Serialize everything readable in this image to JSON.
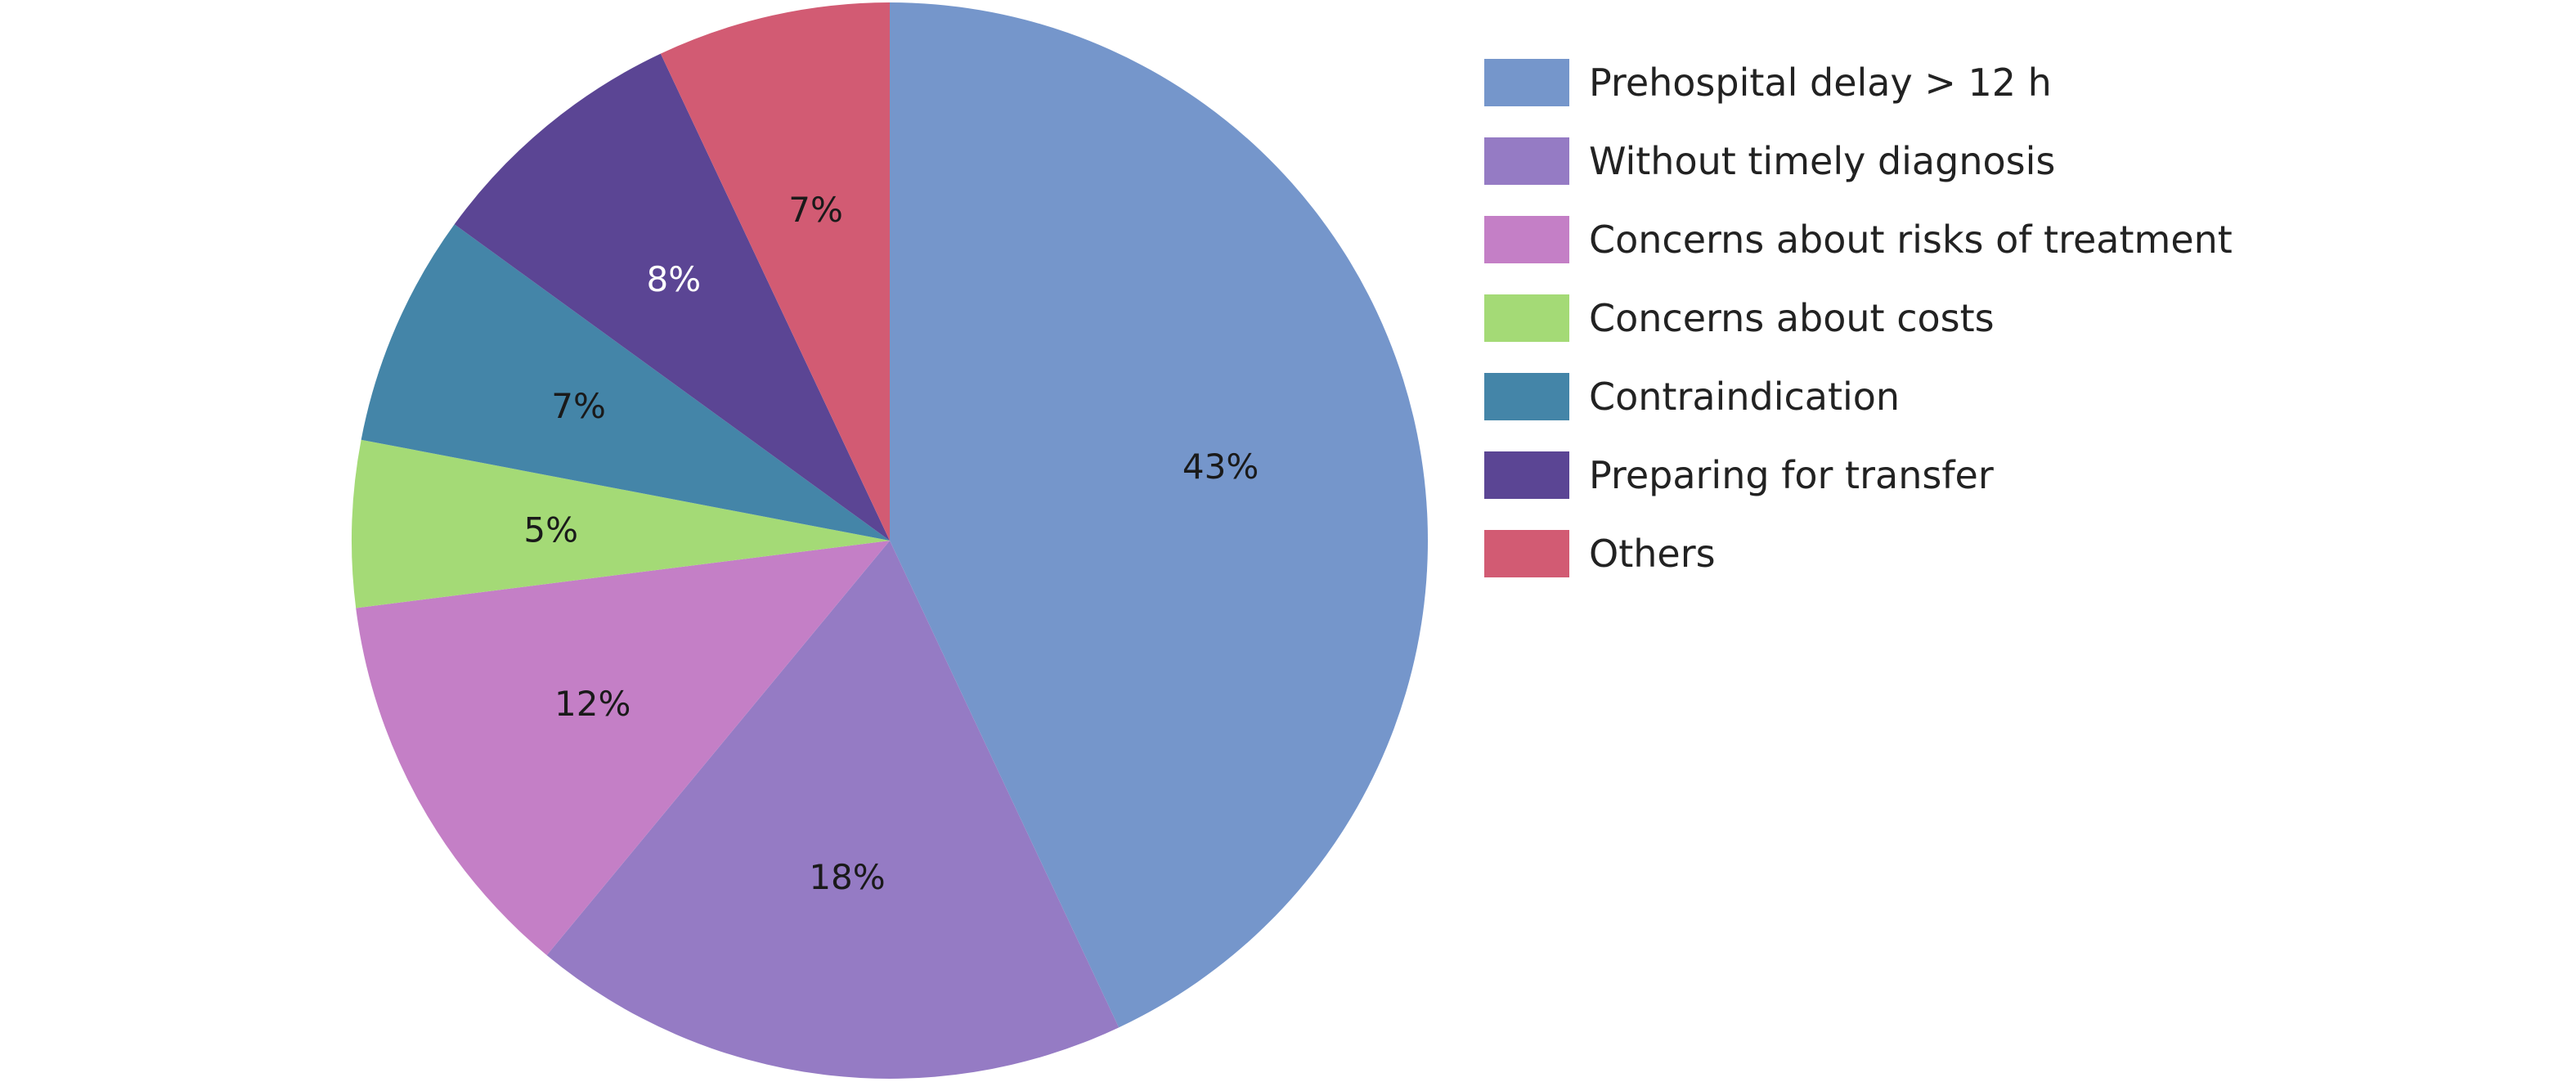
{
  "chart_data": {
    "type": "pie",
    "start_angle_deg": 0,
    "direction": "clockwise",
    "legend_position": "right",
    "slices": [
      {
        "label": "Prehospital delay > 12 h",
        "value": 43,
        "display": "43%",
        "color": "#7596CB",
        "label_color": "#1a1a1a"
      },
      {
        "label": "Without timely diagnosis",
        "value": 18,
        "display": "18%",
        "color": "#957BC4",
        "label_color": "#1a1a1a"
      },
      {
        "label": "Concerns about risks of treatment",
        "value": 12,
        "display": "12%",
        "color": "#C47FC6",
        "label_color": "#1a1a1a"
      },
      {
        "label": "Concerns about costs",
        "value": 5,
        "display": "5%",
        "color": "#A4DA76",
        "label_color": "#1a1a1a"
      },
      {
        "label": "Contraindication",
        "value": 7,
        "display": "7%",
        "color": "#4485A8",
        "label_color": "#1a1a1a"
      },
      {
        "label": "Preparing for transfer",
        "value": 8,
        "display": "8%",
        "color": "#5B4594",
        "label_color": "#ffffff"
      },
      {
        "label": "Others",
        "value": 7,
        "display": "7%",
        "color": "#D25B73",
        "label_color": "#1a1a1a"
      }
    ]
  }
}
